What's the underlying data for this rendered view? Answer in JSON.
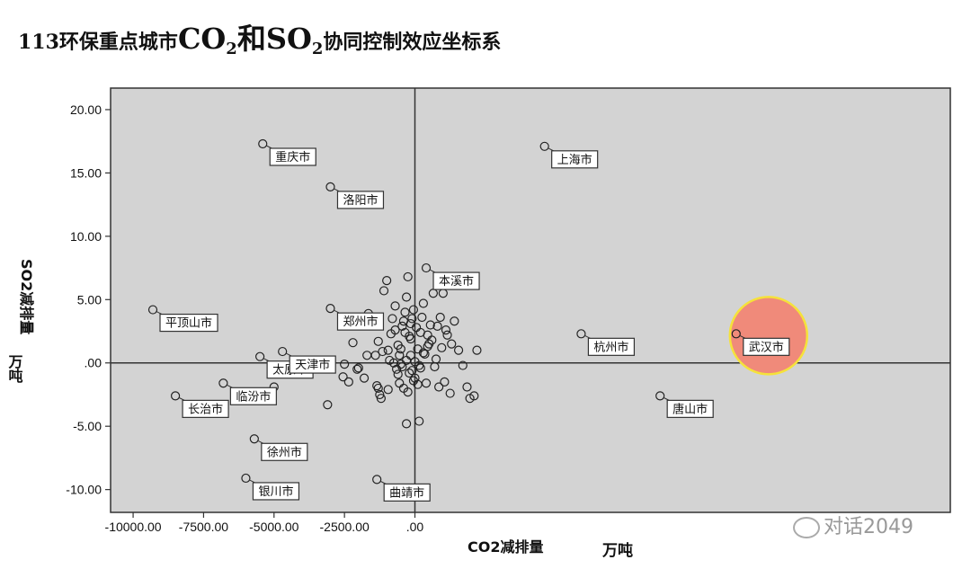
{
  "page_title": {
    "prefix": "113环保重点城市",
    "co2_main": "CO",
    "co2_sub": "2",
    "he": "和",
    "so2_main": "SO",
    "so2_sub": "2",
    "suffix": "协同控制效应坐标系"
  },
  "watermark": "对话2049",
  "colors": {
    "plot_bg": "#d3d3d3",
    "highlight_fill": "#f08a7a",
    "highlight_stroke": "#f5e23a"
  },
  "chart_data": {
    "type": "scatter",
    "xlabel_bold": "CO2减排量",
    "xlabel_unit": "万吨",
    "ylabel_bold": "SO2减排量",
    "ylabel_unit": "万吨",
    "xlim": [
      -10800,
      19000
    ],
    "ylim": [
      -11.8,
      21.7
    ],
    "x_ticks": [
      {
        "value": -10000,
        "label": "-10000.00"
      },
      {
        "value": -7500,
        "label": "-7500.00"
      },
      {
        "value": -5000,
        "label": "-5000.00"
      },
      {
        "value": -2500,
        "label": "-2500.00"
      },
      {
        "value": 0,
        "label": ".00"
      }
    ],
    "y_ticks": [
      {
        "value": 20,
        "label": "20.00"
      },
      {
        "value": 15,
        "label": "15.00"
      },
      {
        "value": 10,
        "label": "10.00"
      },
      {
        "value": 5,
        "label": "5.00"
      },
      {
        "value": 0,
        "label": ".00"
      },
      {
        "value": -5,
        "label": "-5.00"
      },
      {
        "value": -10,
        "label": "-10.00"
      }
    ],
    "grid": false,
    "reference_lines": {
      "x": 0,
      "y": 0
    },
    "labeled_points": [
      {
        "name": "重庆市",
        "x": -5400,
        "y": 17.3
      },
      {
        "name": "上海市",
        "x": 4600,
        "y": 17.1
      },
      {
        "name": "洛阳市",
        "x": -3000,
        "y": 13.9
      },
      {
        "name": "本溪市",
        "x": 400,
        "y": 7.5
      },
      {
        "name": "平顶山市",
        "x": -9300,
        "y": 4.2
      },
      {
        "name": "郑州市",
        "x": -3000,
        "y": 4.3
      },
      {
        "name": "杭州市",
        "x": 5900,
        "y": 2.3
      },
      {
        "name": "武汉市",
        "x": 11400,
        "y": 2.3
      },
      {
        "name": "太原市",
        "x": -5500,
        "y": 0.5
      },
      {
        "name": "天津市",
        "x": -4700,
        "y": 0.9
      },
      {
        "name": "长治市",
        "x": -8500,
        "y": -2.6
      },
      {
        "name": "临汾市",
        "x": -6800,
        "y": -1.6
      },
      {
        "name": "唐山市",
        "x": 8700,
        "y": -2.6
      },
      {
        "name": "徐州市",
        "x": -5700,
        "y": -6.0
      },
      {
        "name": "银川市",
        "x": -6000,
        "y": -9.1
      },
      {
        "name": "曲靖市",
        "x": -1350,
        "y": -9.2
      }
    ],
    "points": [
      [
        -5000,
        -1.9
      ],
      [
        -3100,
        -3.3
      ],
      [
        -2500,
        -0.1
      ],
      [
        -2550,
        -1.1
      ],
      [
        -2200,
        1.6
      ],
      [
        -2000,
        -0.4
      ],
      [
        -1800,
        -1.2
      ],
      [
        -1650,
        3.9
      ],
      [
        -1500,
        3.4
      ],
      [
        -1400,
        0.6
      ],
      [
        -1300,
        1.7
      ],
      [
        -1350,
        -1.8
      ],
      [
        -1300,
        -2.0
      ],
      [
        -1200,
        -2.8
      ],
      [
        -1100,
        5.7
      ],
      [
        -1000,
        6.5
      ],
      [
        -950,
        -2.1
      ],
      [
        -900,
        0.2
      ],
      [
        -850,
        2.3
      ],
      [
        -800,
        3.5
      ],
      [
        -700,
        4.5
      ],
      [
        -650,
        -0.5
      ],
      [
        -600,
        1.4
      ],
      [
        -550,
        0.6
      ],
      [
        -500,
        -0.1
      ],
      [
        -450,
        2.9
      ],
      [
        -400,
        3.3
      ],
      [
        -350,
        4.0
      ],
      [
        -300,
        5.2
      ],
      [
        -250,
        6.8
      ],
      [
        -250,
        -2.3
      ],
      [
        -200,
        -0.8
      ],
      [
        -150,
        1.9
      ],
      [
        -100,
        3.5
      ],
      [
        -50,
        4.2
      ],
      [
        -50,
        -1.4
      ],
      [
        0,
        0.1
      ],
      [
        50,
        2.8
      ],
      [
        100,
        1.1
      ],
      [
        150,
        -0.2
      ],
      [
        200,
        2.4
      ],
      [
        250,
        3.6
      ],
      [
        300,
        4.7
      ],
      [
        350,
        0.7
      ],
      [
        400,
        -1.6
      ],
      [
        450,
        2.2
      ],
      [
        500,
        1.5
      ],
      [
        550,
        3.0
      ],
      [
        600,
        1.8
      ],
      [
        650,
        5.5
      ],
      [
        700,
        -0.3
      ],
      [
        750,
        0.3
      ],
      [
        800,
        2.9
      ],
      [
        850,
        -1.9
      ],
      [
        900,
        3.6
      ],
      [
        950,
        1.2
      ],
      [
        1000,
        5.5
      ],
      [
        1050,
        -1.5
      ],
      [
        1100,
        2.6
      ],
      [
        1150,
        2.2
      ],
      [
        1250,
        -2.4
      ],
      [
        1300,
        1.5
      ],
      [
        1400,
        3.3
      ],
      [
        1550,
        1.0
      ],
      [
        1700,
        -0.2
      ],
      [
        1850,
        -1.9
      ],
      [
        1950,
        -2.8
      ],
      [
        2100,
        -2.6
      ],
      [
        2200,
        1.0
      ],
      [
        -300,
        -4.8
      ],
      [
        150,
        -4.6
      ],
      [
        -750,
        0.0
      ],
      [
        -950,
        1.0
      ],
      [
        -1150,
        0.9
      ],
      [
        -1700,
        0.6
      ],
      [
        -2050,
        -0.5
      ],
      [
        -2350,
        -1.5
      ],
      [
        -600,
        -0.9
      ],
      [
        -450,
        -0.3
      ],
      [
        -150,
        0.6
      ],
      [
        -100,
        -0.6
      ],
      [
        0,
        -1.2
      ],
      [
        100,
        -1.7
      ],
      [
        200,
        -0.4
      ],
      [
        300,
        0.8
      ],
      [
        -700,
        2.6
      ],
      [
        -500,
        1.1
      ],
      [
        -300,
        0.2
      ],
      [
        -200,
        2.1
      ],
      [
        -400,
        -2.0
      ],
      [
        -1250,
        -2.5
      ],
      [
        -550,
        -1.6
      ],
      [
        -350,
        2.4
      ],
      [
        -150,
        3.1
      ],
      [
        450,
        1.3
      ]
    ]
  }
}
